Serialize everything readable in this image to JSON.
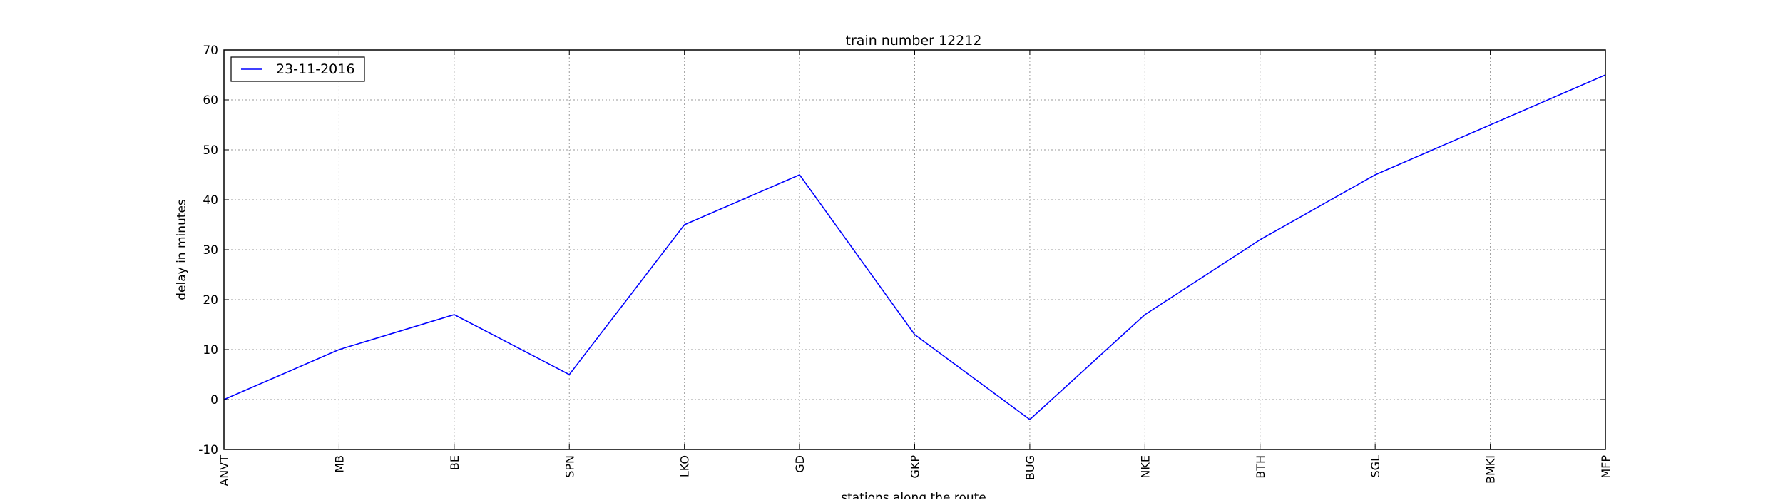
{
  "chart_data": {
    "type": "line",
    "title": "train number 12212",
    "xlabel": "stations along the route",
    "ylabel": "delay in minutes",
    "categories": [
      "ANVT",
      "MB",
      "BE",
      "SPN",
      "LKO",
      "GD",
      "GKP",
      "BUG",
      "NKE",
      "BTH",
      "SGL",
      "BMKI",
      "MFP"
    ],
    "series": [
      {
        "name": "23-11-2016",
        "color": "#0000ff",
        "values": [
          0,
          10,
          17,
          5,
          35,
          45,
          13,
          -4,
          17,
          32,
          45,
          55,
          65
        ]
      }
    ],
    "ylim": [
      -10,
      70
    ],
    "yticks": [
      -10,
      0,
      10,
      20,
      30,
      40,
      50,
      60,
      70
    ],
    "grid": true,
    "legend_position": "top-left"
  }
}
